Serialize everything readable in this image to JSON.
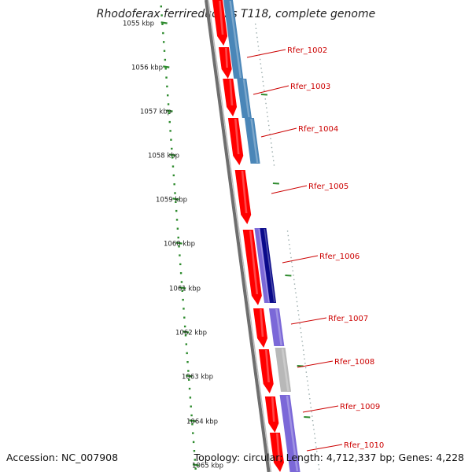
{
  "title": "Rhodoferax ferrireducens T118, complete genome",
  "accession": "Accession: NC_007908",
  "topology": "Topology: circular; Length: 4,712,337 bp; Genes: 4,228",
  "ruler_labels": [
    "1055 kbp",
    "1056 kbp",
    "1057 kbp",
    "1058 kbp",
    "1059 kbp",
    "1060 kbp",
    "1061 kbp",
    "1062 kbp",
    "1063 kbp",
    "1064 kbp",
    "1065 kbp"
  ],
  "gene_labels": [
    "Rfer_1002",
    "Rfer_1003",
    "Rfer_1004",
    "Rfer_1005",
    "Rfer_1006",
    "Rfer_1007",
    "Rfer_1008",
    "Rfer_1009",
    "Rfer_1010"
  ],
  "colors": {
    "cds": "#ff0000",
    "cog_blue": "#4a86b8",
    "cog_purple": "#7b68d8",
    "cog_navy": "#0a0a8a",
    "cog_gray": "#b8b8b8",
    "backbone": "#6e6e6e",
    "ruler_tick": "#2e8b2e",
    "label": "#cc0000"
  }
}
